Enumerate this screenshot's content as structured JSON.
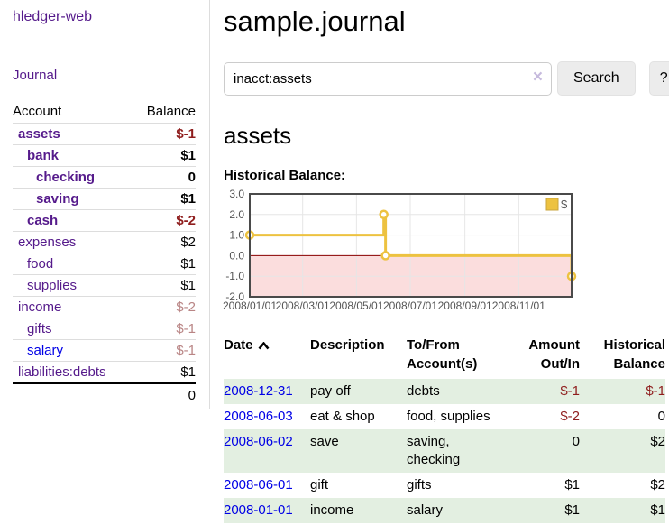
{
  "app": {
    "title": "hledger-web"
  },
  "sidebar": {
    "journal_label": "Journal",
    "accounts_table": {
      "headers": [
        "Account",
        "Balance"
      ],
      "rows": [
        {
          "account": "assets",
          "balance": "$-1",
          "level": 0,
          "emphasized": true,
          "balance_tone": "negative",
          "link_tone": "visited"
        },
        {
          "account": "bank",
          "balance": "$1",
          "level": 1,
          "emphasized": true,
          "balance_tone": "normal",
          "link_tone": "visited"
        },
        {
          "account": "checking",
          "balance": "0",
          "level": 2,
          "emphasized": true,
          "balance_tone": "normal",
          "link_tone": "visited"
        },
        {
          "account": "saving",
          "balance": "$1",
          "level": 2,
          "emphasized": true,
          "balance_tone": "normal",
          "link_tone": "visited"
        },
        {
          "account": "cash",
          "balance": "$-2",
          "level": 1,
          "emphasized": true,
          "balance_tone": "negative",
          "link_tone": "visited"
        },
        {
          "account": "expenses",
          "balance": "$2",
          "level": 0,
          "emphasized": false,
          "balance_tone": "normal",
          "link_tone": "visited"
        },
        {
          "account": "food",
          "balance": "$1",
          "level": 1,
          "emphasized": false,
          "balance_tone": "normal",
          "link_tone": "visited"
        },
        {
          "account": "supplies",
          "balance": "$1",
          "level": 1,
          "emphasized": false,
          "balance_tone": "normal",
          "link_tone": "visited"
        },
        {
          "account": "income",
          "balance": "$-2",
          "level": 0,
          "emphasized": false,
          "balance_tone": "negative-muted",
          "link_tone": "visited"
        },
        {
          "account": "gifts",
          "balance": "$-1",
          "level": 1,
          "emphasized": false,
          "balance_tone": "negative-muted",
          "link_tone": "visited"
        },
        {
          "account": "salary",
          "balance": "$-1",
          "level": 1,
          "emphasized": false,
          "balance_tone": "negative-muted",
          "link_tone": "unvisited"
        },
        {
          "account": "liabilities:debts",
          "balance": "$1",
          "level": 0,
          "emphasized": false,
          "balance_tone": "normal",
          "link_tone": "visited"
        }
      ],
      "total": "0"
    }
  },
  "main": {
    "title": "sample.journal",
    "search": {
      "value": "inacct:assets",
      "clear_icon": "×",
      "button_label": "Search",
      "help_label": "?"
    },
    "account_heading": "assets",
    "chart_label": "Historical Balance:",
    "register_table": {
      "headers": [
        "Date",
        "Description",
        "To/From Account(s)",
        "Amount Out/In",
        "Historical Balance"
      ],
      "sort": {
        "column": "Date",
        "direction": "ascending"
      },
      "rows": [
        {
          "date": "2008-12-31",
          "description": "pay off",
          "accounts": "debts",
          "amount": "$-1",
          "balance": "$-1",
          "amount_tone": "negative",
          "balance_tone": "negative"
        },
        {
          "date": "2008-06-03",
          "description": "eat & shop",
          "accounts": "food, supplies",
          "amount": "$-2",
          "balance": "0",
          "amount_tone": "negative",
          "balance_tone": "normal"
        },
        {
          "date": "2008-06-02",
          "description": "save",
          "accounts": "saving, checking",
          "amount": "0",
          "balance": "$2",
          "amount_tone": "normal",
          "balance_tone": "normal"
        },
        {
          "date": "2008-06-01",
          "description": "gift",
          "accounts": "gifts",
          "amount": "$1",
          "balance": "$2",
          "amount_tone": "normal",
          "balance_tone": "normal"
        },
        {
          "date": "2008-01-01",
          "description": "income",
          "accounts": "salary",
          "amount": "$1",
          "balance": "$1",
          "amount_tone": "normal",
          "balance_tone": "normal"
        }
      ]
    }
  },
  "chart_data": {
    "type": "line",
    "title": "Historical Balance",
    "step": true,
    "x_range": [
      "2008-01-01",
      "2008-12-31"
    ],
    "ylim": [
      -2.0,
      3.0
    ],
    "yticks": [
      3.0,
      2.0,
      1.0,
      0.0,
      -1.0,
      -2.0
    ],
    "xtick_labels": [
      "2008/01/01",
      "2008/03/01",
      "2008/05/01",
      "2008/07/01",
      "2008/09/01",
      "2008/11/01"
    ],
    "series": [
      {
        "name": "$",
        "color": "#EDC240",
        "points": [
          [
            "2008-01-01",
            1
          ],
          [
            "2008-06-01",
            2
          ],
          [
            "2008-06-03",
            0
          ],
          [
            "2008-12-31",
            -1
          ]
        ]
      }
    ],
    "legend": {
      "position": "top-right",
      "entries": [
        {
          "label": "$",
          "swatch_color": "#EDC240"
        }
      ]
    },
    "grid": true,
    "negative_region_color": "#fbdddd",
    "zero_line_color": "#8b0000",
    "axis_label_color": "#545454",
    "border_color": "#4a4a4a"
  },
  "colors": {
    "link_visited": "#551a8b",
    "link_unvisited": "#0000e6",
    "negative": "#8f1d1d",
    "negative_muted": "#b98585",
    "row_alt_green": "#e3efe1",
    "accent_yellow": "#EDC240"
  }
}
